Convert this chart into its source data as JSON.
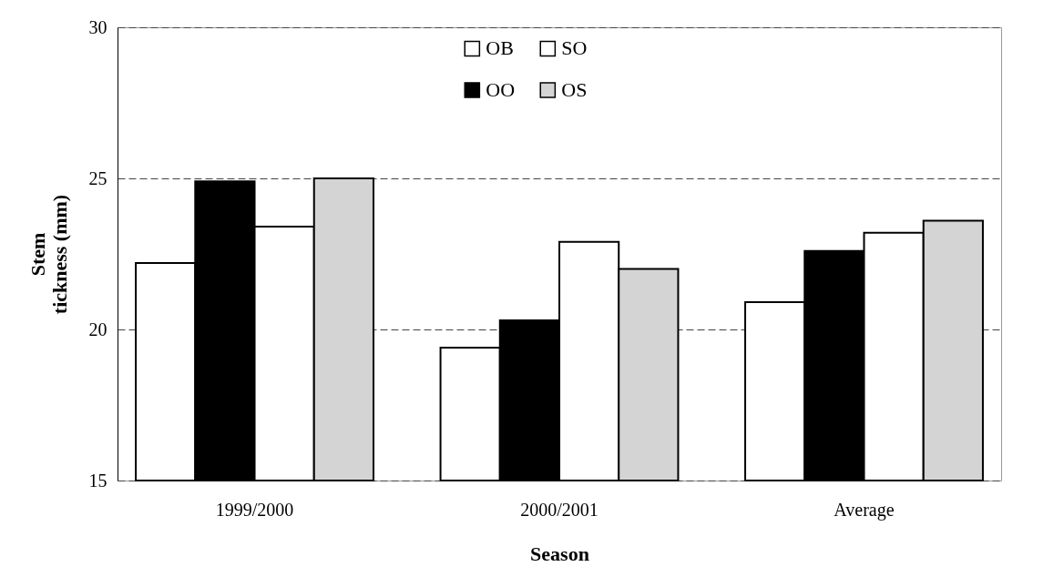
{
  "chart_data": {
    "type": "bar",
    "xlabel": "Season",
    "ylabel": "Stem tickness (mm)",
    "categories": [
      "1999/2000",
      "2000/2001",
      "Average"
    ],
    "series": [
      {
        "name": "OB",
        "color": "#ffffff",
        "values": [
          22.2,
          19.4,
          20.9
        ]
      },
      {
        "name": "OO",
        "color": "#000000",
        "values": [
          24.9,
          20.3,
          22.6
        ]
      },
      {
        "name": "SO",
        "color": "#ffffff",
        "values": [
          23.4,
          22.9,
          23.2
        ]
      },
      {
        "name": "OS",
        "color": "#d4d4d4",
        "values": [
          25.0,
          22.0,
          23.6
        ]
      }
    ],
    "ylim": [
      15,
      30
    ],
    "yticks": [
      15,
      20,
      25,
      30
    ],
    "grid": "y",
    "legend": "top"
  }
}
